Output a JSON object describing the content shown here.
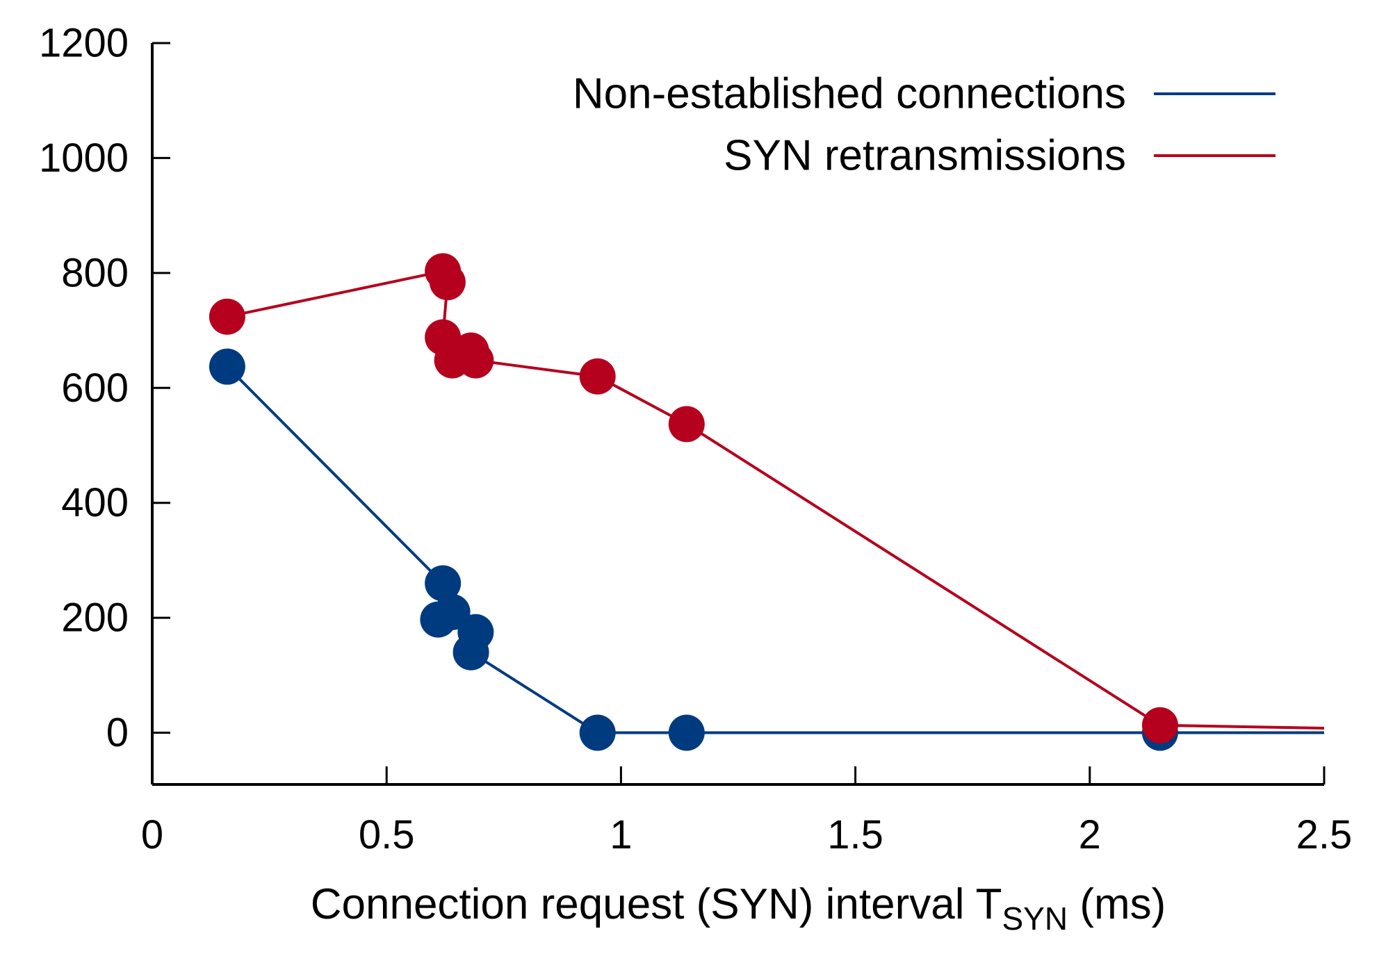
{
  "chart_data": {
    "type": "line",
    "title": "",
    "xlabel": {
      "prefix": "Connection request (SYN) interval T",
      "subscript": "SYN",
      "suffix": " (ms)"
    },
    "ylabel": "",
    "xlim": [
      0,
      2.5
    ],
    "ylim": [
      -90,
      1200
    ],
    "xticks": [
      0,
      0.5,
      1,
      1.5,
      2,
      2.5
    ],
    "xtick_labels": [
      "0",
      "0.5",
      "1",
      "1.5",
      "2",
      "2.5"
    ],
    "yticks": [
      0,
      200,
      400,
      600,
      800,
      1000,
      1200
    ],
    "ytick_labels": [
      "0",
      "200",
      "400",
      "600",
      "800",
      "1000",
      "1200"
    ],
    "grid": false,
    "legend_position": "top-right",
    "series": [
      {
        "name": "Non-established connections",
        "color": "#003b7f",
        "x": [
          0.16,
          0.62,
          0.61,
          0.64,
          0.69,
          0.68,
          0.95,
          1.14,
          2.15,
          2.5
        ],
        "y": [
          637,
          260,
          197,
          210,
          175,
          140,
          0,
          0,
          0,
          0
        ],
        "markers": [
          true,
          true,
          true,
          true,
          true,
          true,
          true,
          true,
          true,
          false
        ]
      },
      {
        "name": "SYN retransmissions",
        "color": "#b5001e",
        "x": [
          0.16,
          0.62,
          0.63,
          0.62,
          0.64,
          0.68,
          0.69,
          0.95,
          1.14,
          2.15,
          2.5
        ],
        "y": [
          724,
          803,
          784,
          688,
          648,
          665,
          648,
          620,
          537,
          13,
          8
        ],
        "markers": [
          true,
          true,
          true,
          true,
          true,
          true,
          true,
          true,
          true,
          true,
          false
        ]
      }
    ]
  }
}
